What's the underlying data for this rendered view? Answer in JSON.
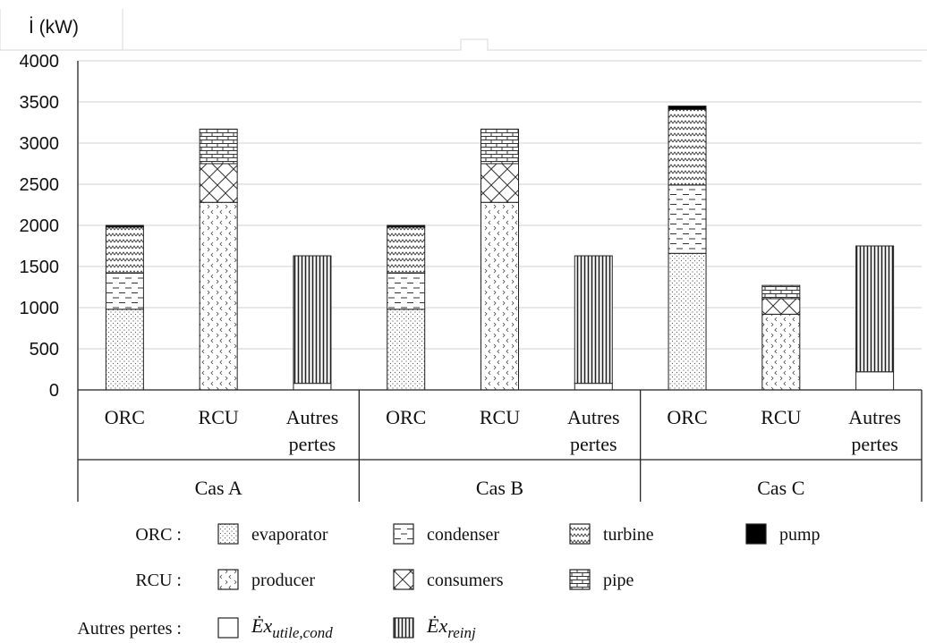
{
  "chart_data": {
    "type": "bar",
    "stacked": true,
    "y_axis_label": "İ (kW)",
    "ylim": [
      0,
      4000
    ],
    "yticks": [
      0,
      500,
      1000,
      1500,
      2000,
      2500,
      3000,
      3500,
      4000
    ],
    "grid": true,
    "groups": [
      {
        "name": "Cas A",
        "bars": [
          {
            "label": "ORC",
            "segments": [
              {
                "component": "evaporator",
                "value": 980
              },
              {
                "component": "condenser",
                "value": 440
              },
              {
                "component": "turbine",
                "value": 560
              },
              {
                "component": "pump",
                "value": 20
              }
            ]
          },
          {
            "label": "RCU",
            "segments": [
              {
                "component": "producer",
                "value": 2280
              },
              {
                "component": "consumers",
                "value": 470
              },
              {
                "component": "pipe",
                "value": 420
              }
            ]
          },
          {
            "label": "Autres pertes",
            "segments": [
              {
                "component": "ex_utile_cond",
                "value": 80
              },
              {
                "component": "ex_reinj",
                "value": 1550
              }
            ]
          }
        ]
      },
      {
        "name": "Cas B",
        "bars": [
          {
            "label": "ORC",
            "segments": [
              {
                "component": "evaporator",
                "value": 980
              },
              {
                "component": "condenser",
                "value": 440
              },
              {
                "component": "turbine",
                "value": 560
              },
              {
                "component": "pump",
                "value": 20
              }
            ]
          },
          {
            "label": "RCU",
            "segments": [
              {
                "component": "producer",
                "value": 2280
              },
              {
                "component": "consumers",
                "value": 470
              },
              {
                "component": "pipe",
                "value": 420
              }
            ]
          },
          {
            "label": "Autres pertes",
            "segments": [
              {
                "component": "ex_utile_cond",
                "value": 80
              },
              {
                "component": "ex_reinj",
                "value": 1550
              }
            ]
          }
        ]
      },
      {
        "name": "Cas C",
        "bars": [
          {
            "label": "ORC",
            "segments": [
              {
                "component": "evaporator",
                "value": 1660
              },
              {
                "component": "condenser",
                "value": 830
              },
              {
                "component": "turbine",
                "value": 920
              },
              {
                "component": "pump",
                "value": 40
              }
            ]
          },
          {
            "label": "RCU",
            "segments": [
              {
                "component": "producer",
                "value": 920
              },
              {
                "component": "consumers",
                "value": 190
              },
              {
                "component": "pipe",
                "value": 160
              }
            ]
          },
          {
            "label": "Autres pertes",
            "segments": [
              {
                "component": "ex_utile_cond",
                "value": 220
              },
              {
                "component": "ex_reinj",
                "value": 1530
              }
            ]
          }
        ]
      }
    ],
    "legend": {
      "rows": [
        {
          "title": "ORC :",
          "items": [
            {
              "key": "evaporator",
              "text": "evaporator"
            },
            {
              "key": "condenser",
              "text": "condenser"
            },
            {
              "key": "turbine",
              "text": "turbine"
            },
            {
              "key": "pump",
              "text": "pump"
            }
          ]
        },
        {
          "title": "RCU :",
          "items": [
            {
              "key": "producer",
              "text": "producer"
            },
            {
              "key": "consumers",
              "text": "consumers"
            },
            {
              "key": "pipe",
              "text": "pipe"
            }
          ]
        },
        {
          "title": "Autres pertes :",
          "items": [
            {
              "key": "ex_utile_cond",
              "base": "Ėx",
              "sub": "utile,cond"
            },
            {
              "key": "ex_reinj",
              "base": "Ėx",
              "sub": "reinj"
            }
          ]
        }
      ]
    },
    "component_patterns": {
      "evaporator": "fine-dots",
      "condenser": "horizontal-dashes",
      "turbine": "zigzag",
      "pump": "solid-black",
      "producer": "chevrons",
      "consumers": "diagonal-cross",
      "pipe": "brick",
      "ex_utile_cond": "blank-white",
      "ex_reinj": "vertical-lines"
    }
  }
}
